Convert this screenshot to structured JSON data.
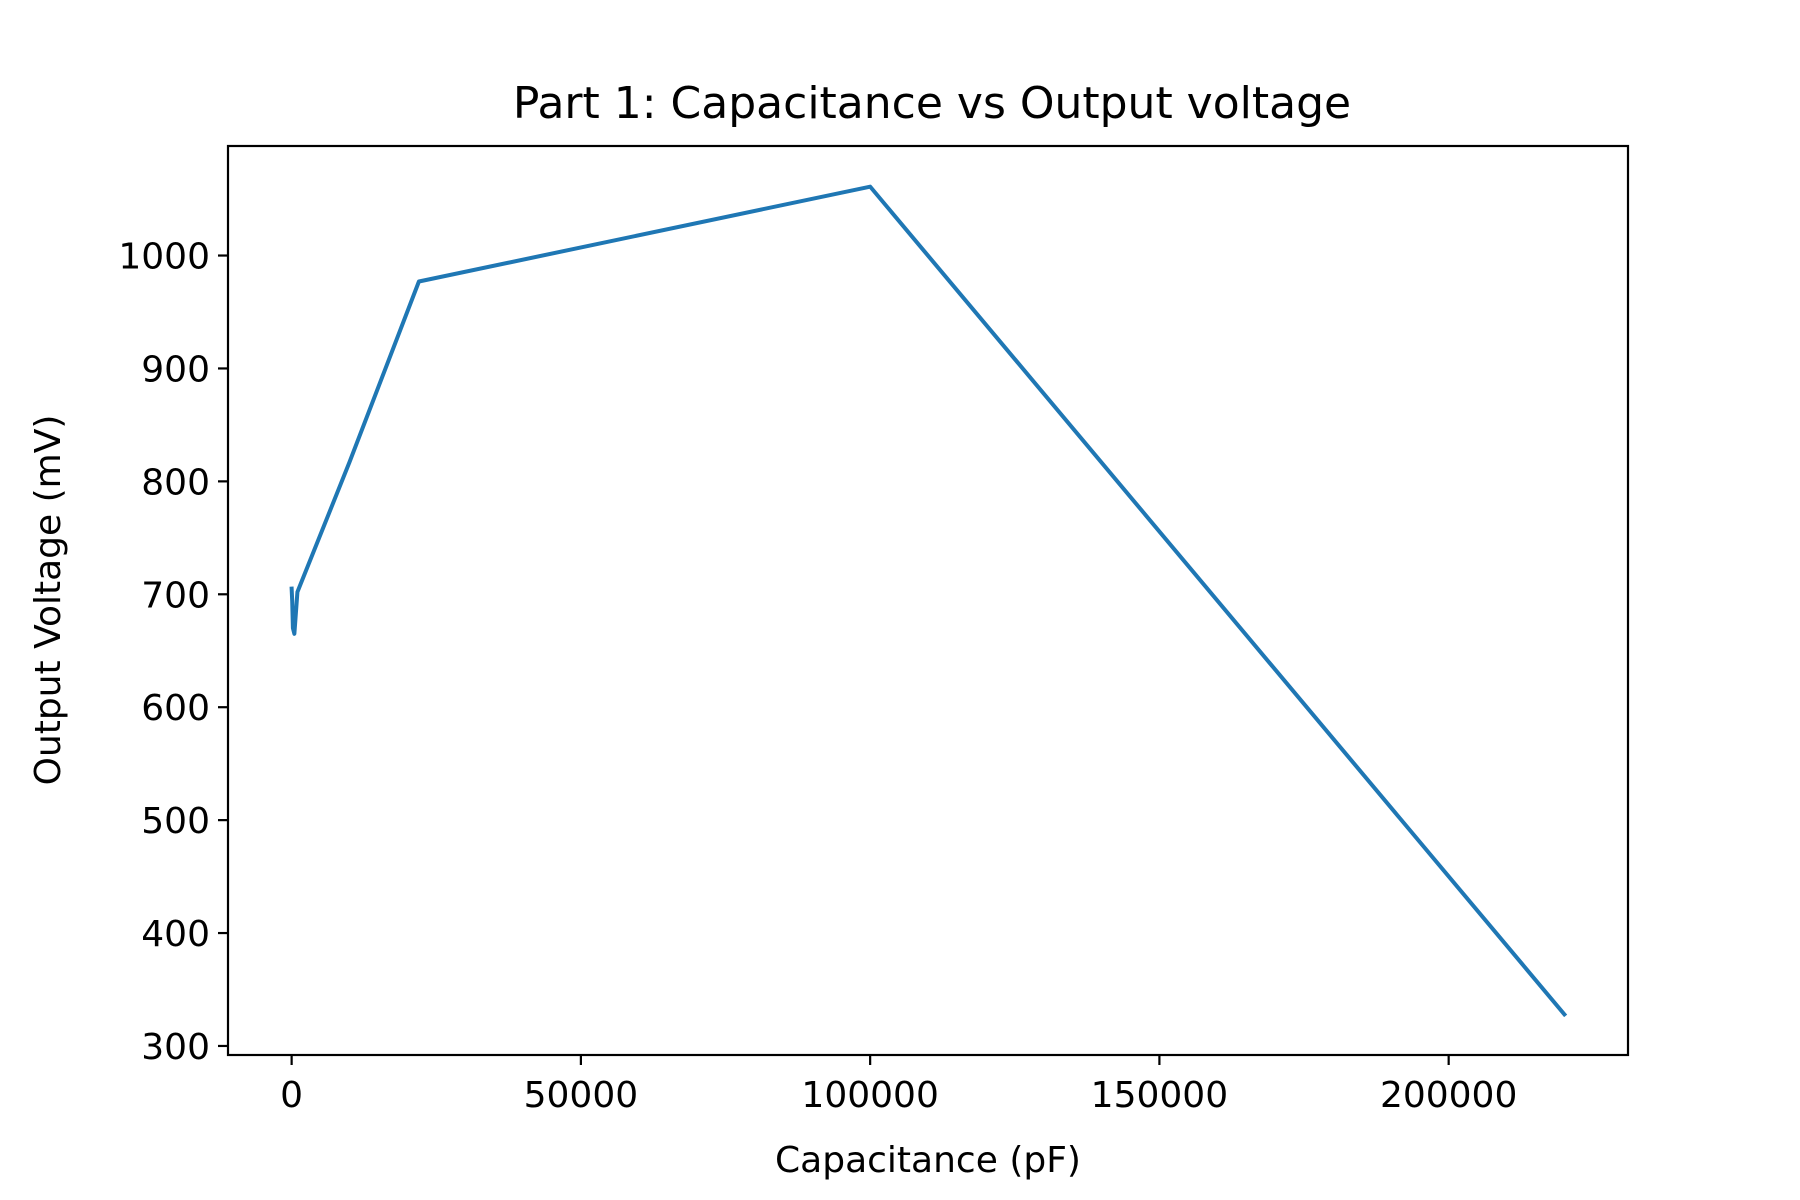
{
  "chart_data": {
    "type": "line",
    "title": "Part 1: Capacitance vs Output voltage",
    "xlabel": "Capacitance (pF)",
    "ylabel": "Output Voltage (mV)",
    "xlim": [
      -11000,
      231000
    ],
    "ylim": [
      292,
      1097
    ],
    "x_ticks": [
      0,
      50000,
      100000,
      150000,
      200000
    ],
    "x_tick_labels": [
      "0",
      "50000",
      "100000",
      "150000",
      "200000"
    ],
    "y_ticks": [
      300,
      400,
      500,
      600,
      700,
      800,
      900,
      1000
    ],
    "y_tick_labels": [
      "300",
      "400",
      "500",
      "600",
      "700",
      "800",
      "900",
      "1000"
    ],
    "grid": false,
    "series": [
      {
        "color": "#1f77b4",
        "x": [
          0,
          100,
          220,
          470,
          1000,
          10000,
          22000,
          100000,
          220000
        ],
        "y": [
          705,
          694,
          670,
          665,
          702,
          817,
          977,
          1061,
          328
        ]
      }
    ]
  }
}
